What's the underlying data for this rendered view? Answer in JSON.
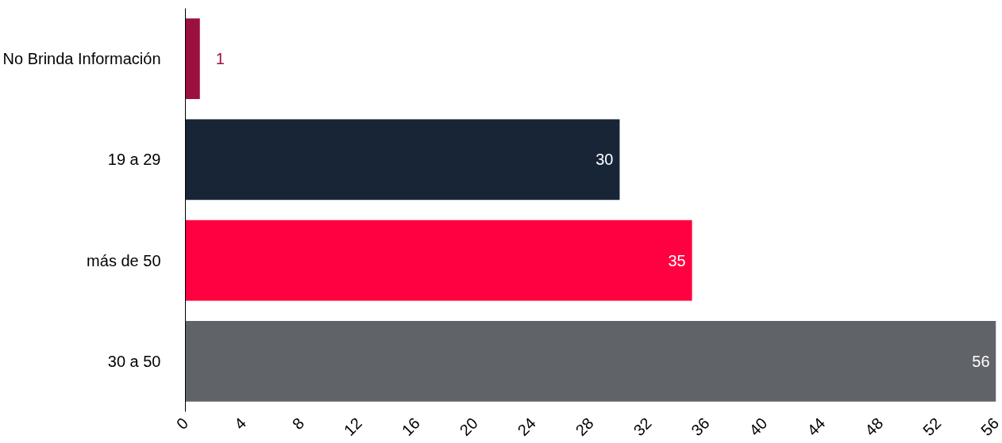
{
  "chart_data": {
    "type": "bar",
    "orientation": "horizontal",
    "categories": [
      "No Brinda Información",
      "19 a 29",
      "más de 50",
      "30 a 50"
    ],
    "values": [
      1,
      30,
      35,
      56
    ],
    "colors": [
      "#9b1040",
      "#172537",
      "#ff0040",
      "#606368"
    ],
    "xlim": [
      0,
      56
    ],
    "xticks": [
      0,
      4,
      8,
      12,
      16,
      20,
      24,
      28,
      32,
      36,
      40,
      44,
      48,
      52,
      56
    ],
    "grid": false,
    "data_labels": true
  }
}
